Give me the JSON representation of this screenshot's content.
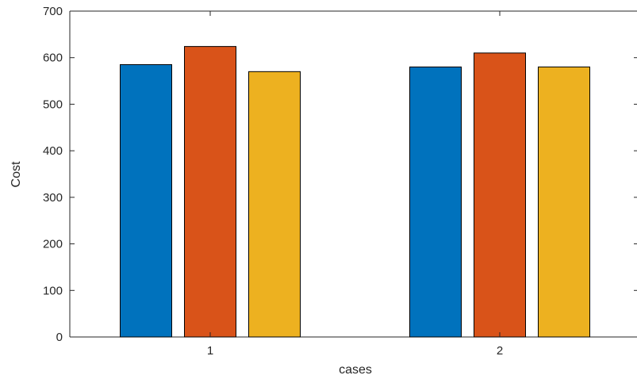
{
  "chart_data": {
    "type": "bar",
    "categories": [
      "1",
      "2"
    ],
    "series": [
      {
        "color": "#0072BD",
        "values": [
          585,
          580
        ]
      },
      {
        "color": "#D95319",
        "values": [
          624,
          610
        ]
      },
      {
        "color": "#EDB120",
        "values": [
          570,
          580
        ]
      }
    ],
    "xlabel": "cases",
    "ylabel": "Cost",
    "ylim": [
      0,
      700
    ],
    "yticks": [
      0,
      100,
      200,
      300,
      400,
      500,
      600,
      700
    ],
    "grid": false,
    "legend": "none"
  }
}
